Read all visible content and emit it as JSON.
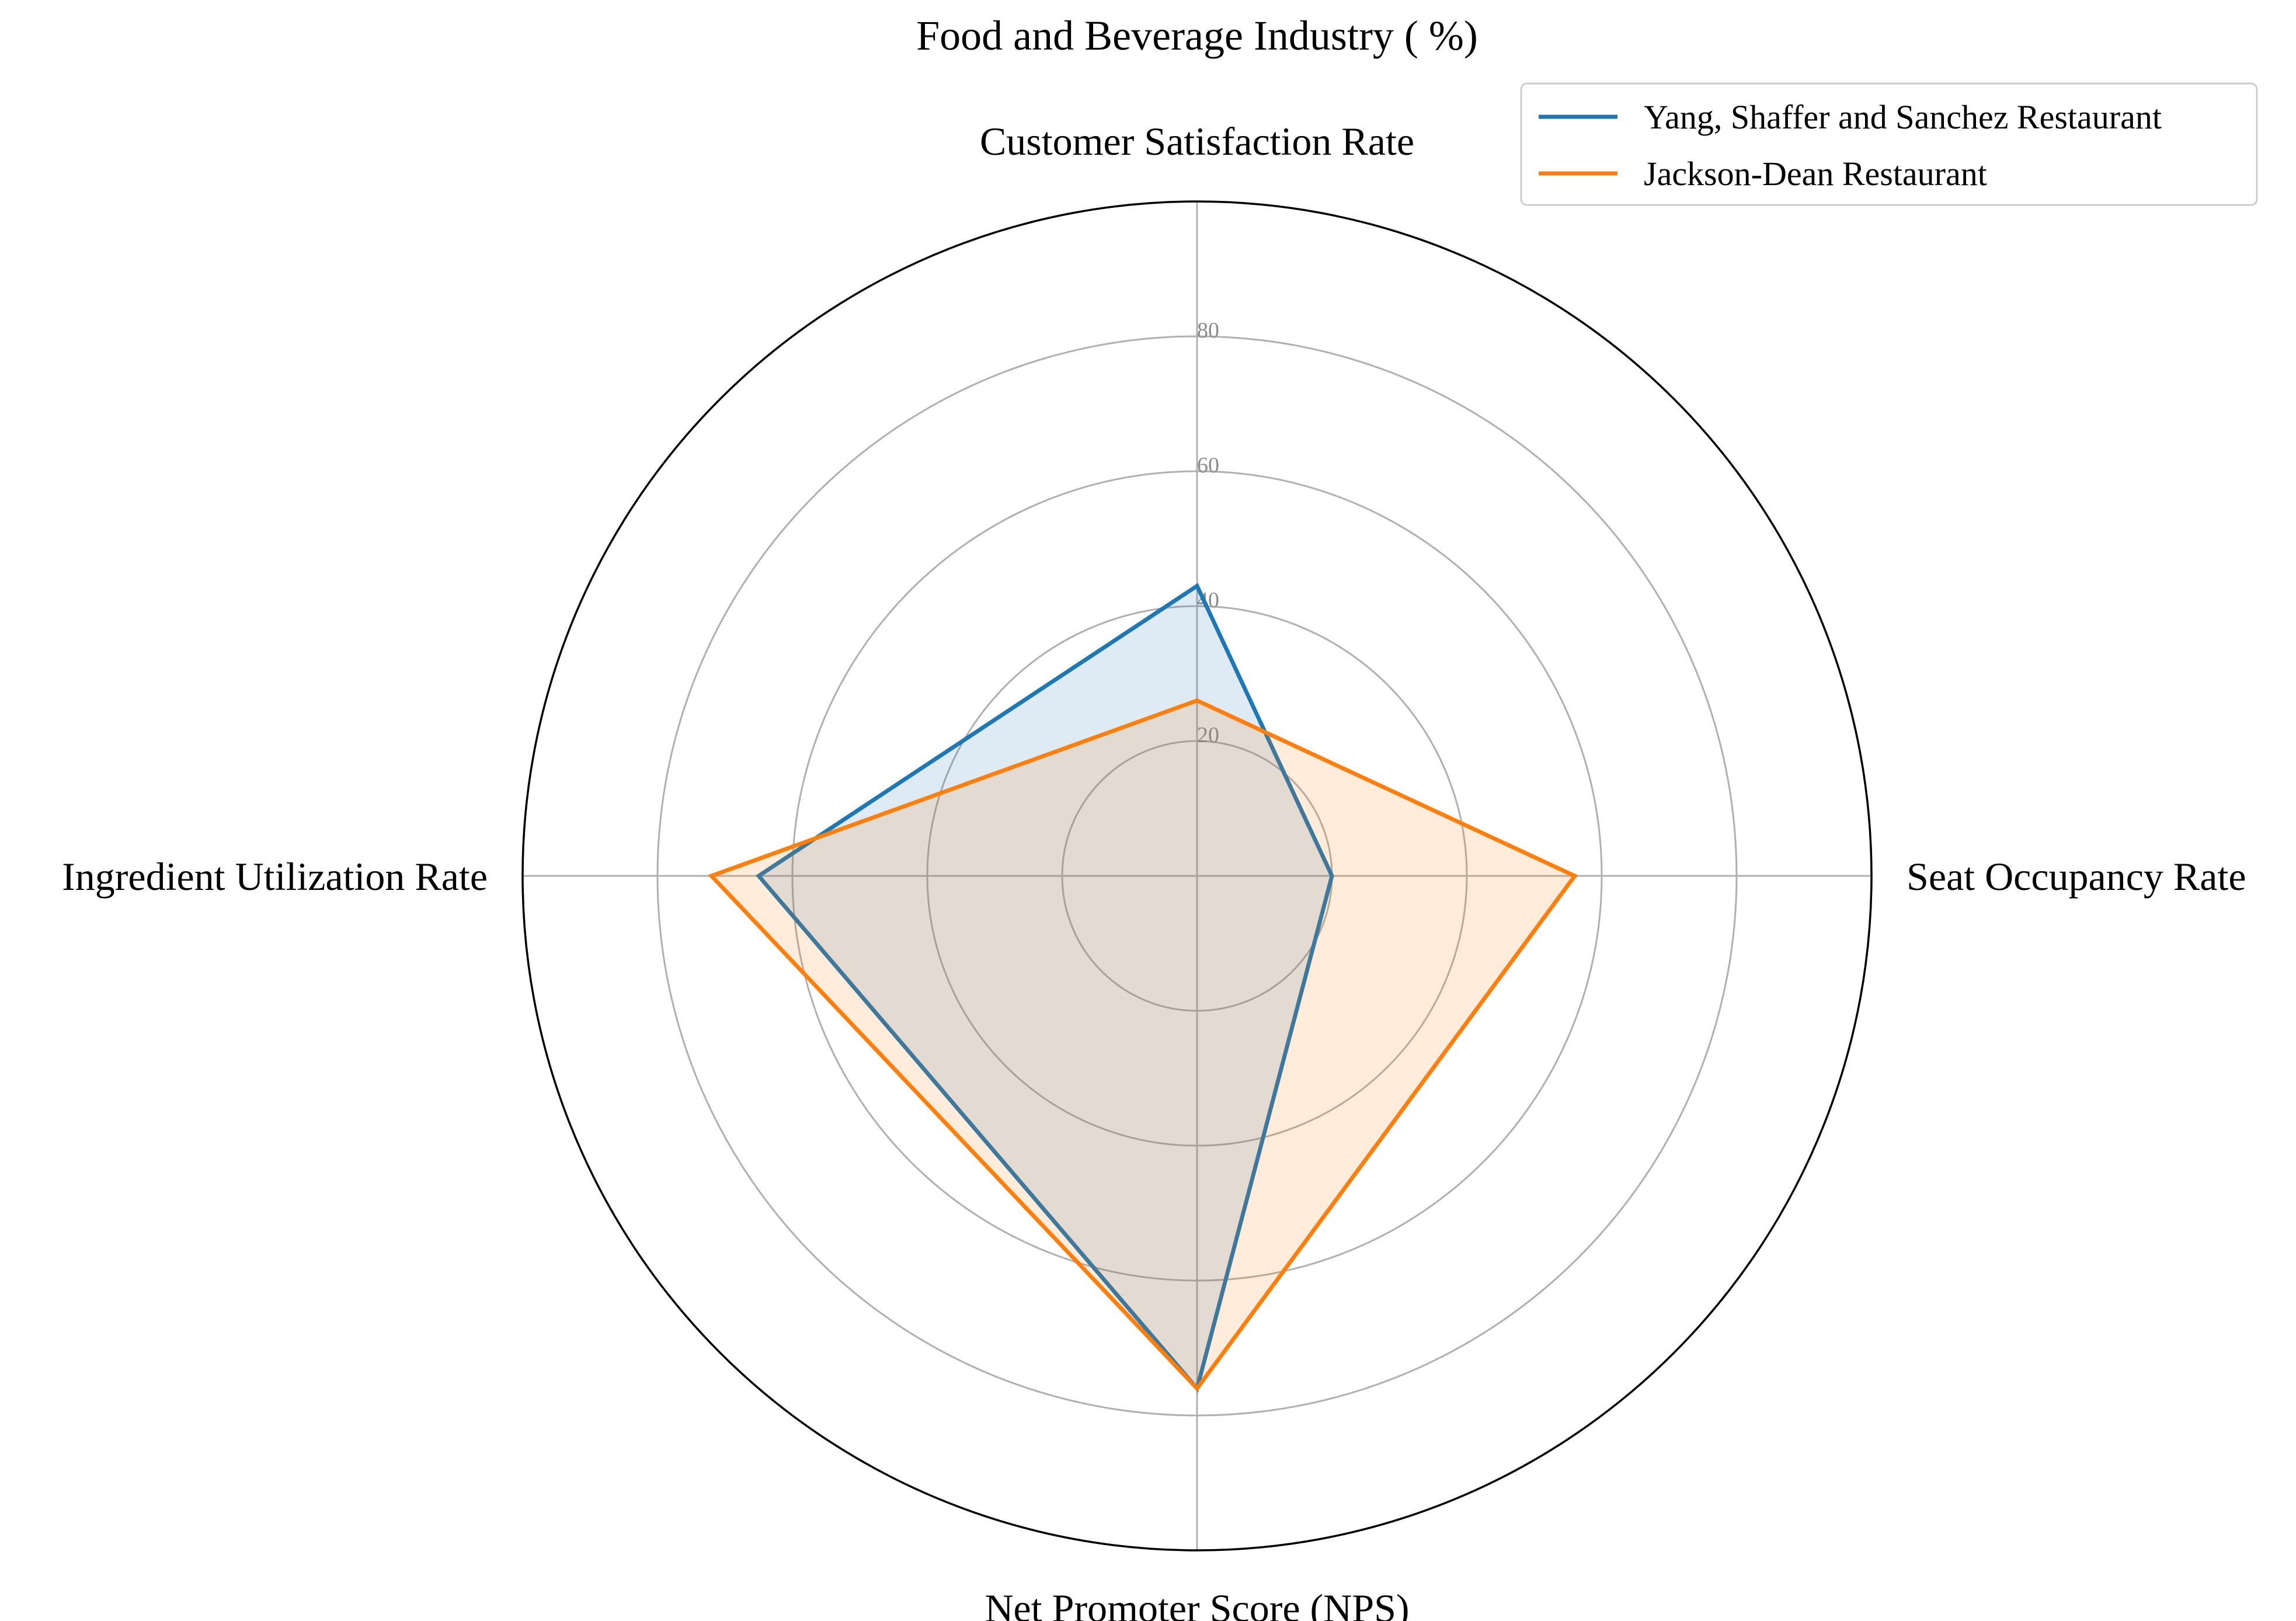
{
  "chart_data": {
    "type": "radar",
    "title": "Food and Beverage Industry ( %)",
    "axes": [
      "Customer Satisfaction Rate",
      "Seat Occupancy Rate",
      "Net Promoter Score (NPS)",
      "Ingredient Utilization Rate"
    ],
    "radial_ticks": [
      "20",
      "40",
      "60",
      "80"
    ],
    "radial_tick_values": [
      20,
      40,
      60,
      80
    ],
    "rlim": [
      0,
      100
    ],
    "grid": true,
    "legend_position": "top-right",
    "series": [
      {
        "name": "Yang, Shaffer and Sanchez Restaurant",
        "color": "#1f77b4",
        "values": [
          43,
          20,
          76,
          65
        ]
      },
      {
        "name": "Jackson-Dean Restaurant",
        "color": "#ff7f0e",
        "values": [
          26,
          56,
          76,
          72
        ]
      }
    ]
  }
}
